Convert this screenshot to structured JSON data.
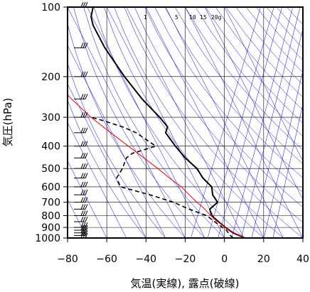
{
  "chart_data": {
    "type": "line",
    "title": "",
    "xlabel": "気温(実線), 露点(破線)",
    "ylabel": "気圧(hPa)",
    "xlim": [
      -80,
      40
    ],
    "ylim": [
      1000,
      100
    ],
    "y_scale": "log",
    "x_ticks": [
      -80,
      -60,
      -40,
      -20,
      0,
      20,
      40
    ],
    "x_tick_labels": [
      "−80",
      "−60",
      "−40",
      "−20",
      "0",
      "20",
      "40"
    ],
    "y_ticks": [
      100,
      200,
      300,
      400,
      500,
      600,
      700,
      800,
      900,
      1000
    ],
    "y_tick_labels": [
      "100",
      "200",
      "300",
      "400",
      "500",
      "600",
      "700",
      "800",
      "900",
      "1000"
    ],
    "grid": true,
    "background_lines": {
      "isotherms_skew": "blue",
      "dry_adiabats": "blue",
      "mixing_ratio": "blue"
    },
    "mixing_ratio_labels": [
      "1",
      "5",
      "10",
      "15",
      "20g"
    ],
    "colors": {
      "temperature": "#000000",
      "dewpoint": "#000000",
      "parcel": "#ff0000",
      "background": "#0000ff"
    },
    "series": [
      {
        "style": "solid",
        "pressure": [
          1000,
          975,
          950,
          925,
          900,
          850,
          800,
          750,
          700,
          650,
          600,
          550,
          500,
          450,
          400,
          350,
          330,
          300,
          250,
          200,
          150,
          120,
          110,
          100
        ],
        "temperature": [
          10.5,
          7.5,
          4.5,
          2.5,
          0.5,
          -3,
          -6.5,
          -7.5,
          -3.5,
          -6,
          -6.5,
          -11,
          -14,
          -20,
          -25,
          -30,
          -29,
          -33,
          -42,
          -51,
          -61,
          -67,
          -68,
          -67
        ]
      },
      {
        "style": "dashed",
        "pressure": [
          1000,
          975,
          950,
          925,
          900,
          850,
          800,
          750,
          700,
          650,
          600,
          550,
          500,
          450,
          430,
          400,
          350,
          330,
          320,
          310,
          300
        ],
        "dewpoint": [
          4.5,
          3,
          2,
          1,
          -1,
          -5,
          -9,
          -18,
          -26,
          -38,
          -53,
          -55,
          -52,
          -50,
          -47,
          -35,
          -45,
          -52,
          -57,
          -62,
          -68
        ]
      },
      {
        "style": "solid",
        "pressure": [
          1000,
          950,
          900,
          850,
          800,
          750,
          700,
          650,
          600,
          550,
          500,
          450,
          400,
          350,
          300,
          250,
          220
        ],
        "parcel": [
          10.5,
          5,
          0.5,
          -3.5,
          -7,
          -10,
          -14,
          -18,
          -22,
          -28,
          -34,
          -41,
          -49,
          -58,
          -68,
          -78,
          -84
        ]
      }
    ],
    "wind_barbs": {
      "side": "left",
      "pressure": [
        100,
        150,
        200,
        250,
        300,
        350,
        400,
        450,
        500,
        550,
        600,
        650,
        700,
        750,
        800,
        850,
        900,
        925,
        950,
        975,
        1000
      ]
    }
  }
}
